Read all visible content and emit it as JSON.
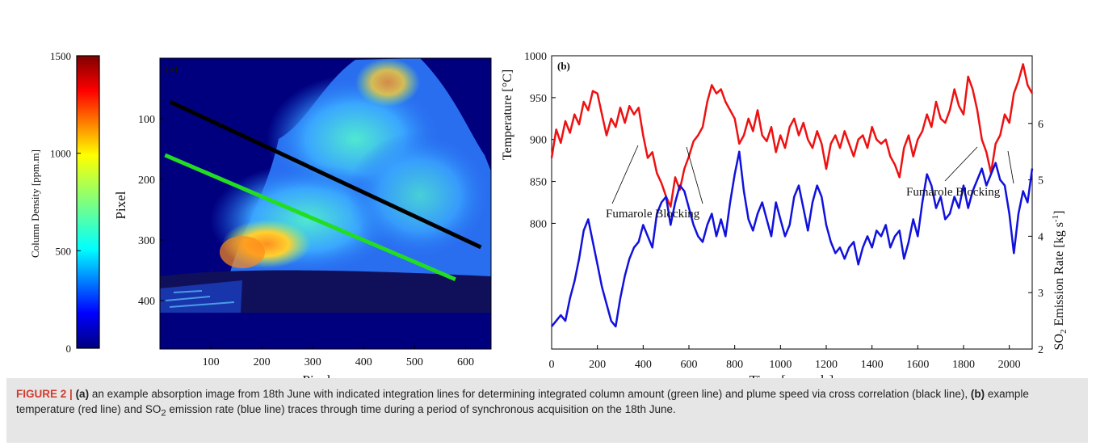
{
  "colorbar": {
    "label": "Column Density [ppm.m]",
    "ticks": [
      "0",
      "500",
      "1000",
      "1500"
    ],
    "tick_values": [
      0,
      500,
      1000,
      1500
    ],
    "range": [
      0,
      1500
    ],
    "colormap": "jet"
  },
  "panel_a": {
    "tag": "(a)",
    "xlabel": "Pixel",
    "ylabel": "Pixel",
    "xticks": [
      "100",
      "200",
      "300",
      "400",
      "500",
      "600"
    ],
    "yticks": [
      "100",
      "200",
      "300",
      "400"
    ],
    "lines": [
      {
        "name": "black line",
        "color": "#000000",
        "purpose": "plume speed via cross correlation",
        "from": [
          20,
          72
        ],
        "to": [
          630,
          312
        ]
      },
      {
        "name": "green line",
        "color": "#22dd22",
        "purpose": "integrated column amount",
        "from": [
          10,
          160
        ],
        "to": [
          580,
          365
        ]
      }
    ],
    "colors": {
      "background": "#00007f",
      "plume_low": "#3aa0ff",
      "plume_mid": "#50ffb0",
      "plume_high": "#ff9a20"
    }
  },
  "chart_data": {
    "type": "line",
    "tag": "(b)",
    "xlabel": "Time [seconds]",
    "ylabel_left": "Temperature [°C]",
    "ylabel_right": "SO2 Emission Rate [kg s-1]",
    "xlim": [
      0,
      2100
    ],
    "xticks": [
      "0",
      "200",
      "400",
      "600",
      "800",
      "1000",
      "1200",
      "1400",
      "1600",
      "1800",
      "2000"
    ],
    "ylim_left": [
      650,
      1000
    ],
    "yticks_left": [
      "800",
      "850",
      "900",
      "950",
      "1000"
    ],
    "ylim_right": [
      2,
      7.2
    ],
    "yticks_right": [
      "2",
      "3",
      "4",
      "5",
      "6"
    ],
    "annotations": [
      "Fumarole Blocking",
      "Fumarole Blocking"
    ],
    "series": [
      {
        "name": "Temperature",
        "axis": "left",
        "color": "#ee1111",
        "x": [
          0,
          20,
          40,
          60,
          80,
          100,
          120,
          140,
          160,
          180,
          200,
          220,
          240,
          260,
          280,
          300,
          320,
          340,
          360,
          380,
          400,
          420,
          440,
          460,
          480,
          500,
          520,
          540,
          560,
          580,
          600,
          620,
          640,
          660,
          680,
          700,
          720,
          740,
          760,
          780,
          800,
          820,
          840,
          860,
          880,
          900,
          920,
          940,
          960,
          980,
          1000,
          1020,
          1040,
          1060,
          1080,
          1100,
          1120,
          1140,
          1160,
          1180,
          1200,
          1220,
          1240,
          1260,
          1280,
          1300,
          1320,
          1340,
          1360,
          1380,
          1400,
          1420,
          1440,
          1460,
          1480,
          1500,
          1520,
          1540,
          1560,
          1580,
          1600,
          1620,
          1640,
          1660,
          1680,
          1700,
          1720,
          1740,
          1760,
          1780,
          1800,
          1820,
          1840,
          1860,
          1880,
          1900,
          1920,
          1940,
          1960,
          1980,
          2000,
          2020,
          2040,
          2060,
          2080,
          2100
        ],
        "values": [
          878,
          912,
          896,
          922,
          908,
          930,
          918,
          945,
          935,
          958,
          955,
          930,
          905,
          925,
          915,
          938,
          920,
          940,
          930,
          938,
          905,
          878,
          885,
          860,
          848,
          832,
          820,
          855,
          840,
          865,
          880,
          898,
          905,
          915,
          945,
          965,
          955,
          960,
          945,
          935,
          925,
          895,
          905,
          925,
          910,
          935,
          905,
          898,
          915,
          885,
          905,
          890,
          915,
          925,
          905,
          920,
          900,
          890,
          910,
          895,
          865,
          895,
          905,
          890,
          910,
          895,
          880,
          900,
          905,
          890,
          915,
          900,
          895,
          900,
          880,
          870,
          855,
          890,
          905,
          880,
          900,
          910,
          930,
          915,
          945,
          925,
          920,
          935,
          960,
          940,
          930,
          975,
          960,
          935,
          900,
          885,
          860,
          895,
          905,
          930,
          920,
          955,
          970,
          990,
          965,
          955
        ]
      },
      {
        "name": "SO2 Emission Rate",
        "axis": "right",
        "color": "#1111dd",
        "x": [
          0,
          20,
          40,
          60,
          80,
          100,
          120,
          140,
          160,
          180,
          200,
          220,
          240,
          260,
          280,
          300,
          320,
          340,
          360,
          380,
          400,
          420,
          440,
          460,
          480,
          500,
          520,
          540,
          560,
          580,
          600,
          620,
          640,
          660,
          680,
          700,
          720,
          740,
          760,
          780,
          800,
          820,
          840,
          860,
          880,
          900,
          920,
          940,
          960,
          980,
          1000,
          1020,
          1040,
          1060,
          1080,
          1100,
          1120,
          1140,
          1160,
          1180,
          1200,
          1220,
          1240,
          1260,
          1280,
          1300,
          1320,
          1340,
          1360,
          1380,
          1400,
          1420,
          1440,
          1460,
          1480,
          1500,
          1520,
          1540,
          1560,
          1580,
          1600,
          1620,
          1640,
          1660,
          1680,
          1700,
          1720,
          1740,
          1760,
          1780,
          1800,
          1820,
          1840,
          1860,
          1880,
          1900,
          1920,
          1940,
          1960,
          1980,
          2000,
          2020,
          2040,
          2060,
          2080,
          2100
        ],
        "values": [
          2.4,
          2.5,
          2.6,
          2.5,
          2.9,
          3.2,
          3.6,
          4.1,
          4.3,
          3.9,
          3.5,
          3.1,
          2.8,
          2.5,
          2.4,
          2.9,
          3.3,
          3.6,
          3.8,
          3.9,
          4.2,
          4.0,
          3.8,
          4.4,
          4.6,
          4.7,
          4.2,
          4.6,
          4.9,
          4.8,
          4.5,
          4.2,
          4.0,
          3.9,
          4.2,
          4.4,
          4.0,
          4.3,
          4.0,
          4.6,
          5.1,
          5.5,
          4.8,
          4.3,
          4.1,
          4.4,
          4.6,
          4.3,
          4.0,
          4.6,
          4.3,
          4.0,
          4.2,
          4.7,
          4.9,
          4.5,
          4.1,
          4.6,
          4.9,
          4.7,
          4.2,
          3.9,
          3.7,
          3.8,
          3.6,
          3.8,
          3.9,
          3.5,
          3.8,
          4.0,
          3.8,
          4.1,
          4.0,
          4.2,
          3.8,
          4.0,
          4.1,
          3.6,
          3.9,
          4.3,
          4.0,
          4.6,
          5.1,
          4.9,
          4.5,
          4.7,
          4.3,
          4.4,
          4.7,
          4.5,
          4.9,
          4.5,
          4.8,
          5.0,
          5.2,
          4.9,
          5.1,
          5.3,
          5.0,
          4.9,
          4.4,
          3.7,
          4.4,
          4.8,
          4.6,
          5.2
        ]
      }
    ]
  },
  "caption": {
    "label": "FIGURE 2 |",
    "a_tag": "(a)",
    "a_text": " an example absorption image from 18th June with indicated integration lines for determining integrated column amount (green line) and plume speed via cross correlation (black line), ",
    "b_tag": "(b)",
    "b_text_1": " example temperature (red line) and SO",
    "b_sub": "2",
    "b_text_2": " emission rate (blue line) traces through time during a period of synchronous acquisition on the 18th June."
  }
}
